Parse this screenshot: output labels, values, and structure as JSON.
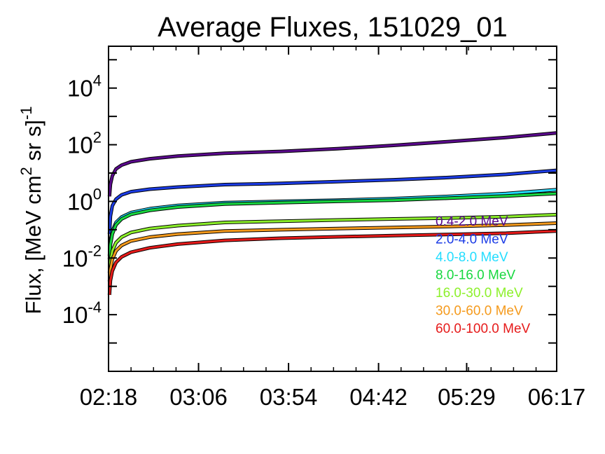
{
  "chart_data": {
    "type": "line",
    "title": "Average Fluxes, 151029_01",
    "ylabel": "Flux, [MeV cm2 sr s]-1",
    "ylabel_parts": {
      "a": "Flux, [MeV cm",
      "b": "2",
      "c": " sr s]",
      "d": "-1"
    },
    "xlabel": "",
    "y_scale": "log",
    "ylim": [
      1e-06,
      300000
    ],
    "x_ticks": [
      "02:18",
      "03:06",
      "03:54",
      "04:42",
      "05:29",
      "06:17"
    ],
    "x_minutes": [
      138,
      186,
      234,
      282,
      329,
      377
    ],
    "xlim": [
      138,
      377
    ],
    "y_ticks": [
      {
        "base": "10",
        "exp": "4",
        "value": 10000
      },
      {
        "base": "10",
        "exp": "2",
        "value": 100
      },
      {
        "base": "10",
        "exp": "0",
        "value": 1
      },
      {
        "base": "10",
        "exp": "-2",
        "value": 0.01
      },
      {
        "base": "10",
        "exp": "-4",
        "value": 0.0001
      }
    ],
    "legend_position": "bottom-right",
    "x": [
      138.5,
      139,
      140,
      142,
      145,
      150,
      160,
      175,
      200,
      230,
      260,
      290,
      320,
      350,
      377
    ],
    "series": [
      {
        "name": "0.4-2.0 MeV",
        "color": "#5a0a8c",
        "values": [
          1.5,
          4,
          8,
          14,
          19,
          25,
          32,
          40,
          50,
          58,
          72,
          95,
          130,
          180,
          260
        ]
      },
      {
        "name": "2.0-4.0 MeV",
        "color": "#1c3ce6",
        "values": [
          0.07,
          0.3,
          0.7,
          1.2,
          1.7,
          2.2,
          2.7,
          3.2,
          3.9,
          4.3,
          5.0,
          5.8,
          7.0,
          9.0,
          12.5
        ]
      },
      {
        "name": "4.0-8.0 MeV",
        "color": "#22ddff",
        "values": [
          0.012,
          0.04,
          0.09,
          0.18,
          0.28,
          0.4,
          0.55,
          0.72,
          0.9,
          1.0,
          1.1,
          1.25,
          1.5,
          1.9,
          2.6
        ]
      },
      {
        "name": "8.0-16.0 MeV",
        "color": "#18d840",
        "values": [
          0.009,
          0.03,
          0.07,
          0.15,
          0.24,
          0.35,
          0.48,
          0.63,
          0.8,
          0.9,
          1.0,
          1.1,
          1.3,
          1.55,
          1.9
        ]
      },
      {
        "name": "16.0-30.0 MeV",
        "color": "#8cf02a",
        "values": [
          0.003,
          0.008,
          0.018,
          0.035,
          0.055,
          0.08,
          0.11,
          0.14,
          0.18,
          0.2,
          0.22,
          0.24,
          0.26,
          0.29,
          0.34
        ]
      },
      {
        "name": "30.0-60.0 MeV",
        "color": "#f59a1c",
        "values": [
          0.0015,
          0.004,
          0.009,
          0.018,
          0.028,
          0.04,
          0.055,
          0.07,
          0.09,
          0.1,
          0.11,
          0.12,
          0.13,
          0.145,
          0.17
        ]
      },
      {
        "name": "60.0-100.0 MeV",
        "color": "#e61a1a",
        "values": [
          0.0005,
          0.0016,
          0.0035,
          0.007,
          0.011,
          0.016,
          0.023,
          0.031,
          0.042,
          0.05,
          0.056,
          0.062,
          0.068,
          0.075,
          0.09
        ]
      }
    ]
  }
}
